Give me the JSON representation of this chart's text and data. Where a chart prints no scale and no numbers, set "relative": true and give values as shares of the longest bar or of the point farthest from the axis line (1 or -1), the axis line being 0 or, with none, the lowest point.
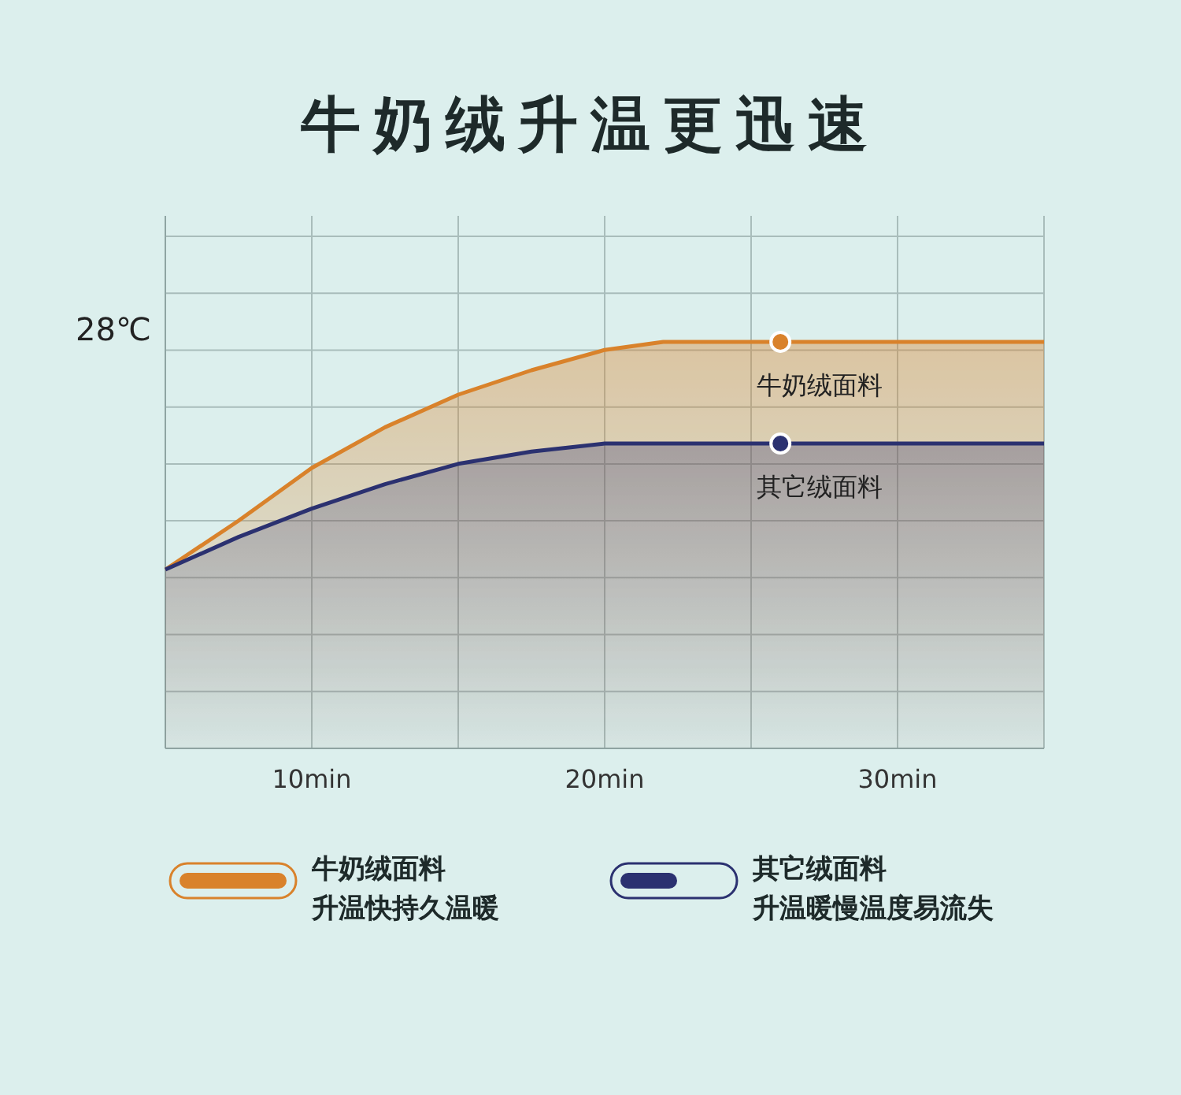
{
  "chart_data": {
    "type": "area",
    "title": "牛奶绒升温更迅速",
    "relative": true,
    "x": [
      5,
      7.5,
      10,
      12.5,
      15,
      17.5,
      20,
      22,
      26,
      30,
      35
    ],
    "series": [
      {
        "name": "牛奶绒面料",
        "color": "#d9822b",
        "values": [
          0.44,
          0.56,
          0.69,
          0.79,
          0.87,
          0.93,
          0.98,
          1,
          1,
          1,
          1
        ]
      },
      {
        "name": "其它绒面料",
        "color": "#2b3170",
        "values": [
          0.44,
          0.52,
          0.59,
          0.65,
          0.7,
          0.73,
          0.75,
          0.75,
          0.75,
          0.75,
          0.75
        ]
      }
    ],
    "xlim": [
      5,
      35
    ],
    "xticks": [
      {
        "value": 5,
        "label": null
      },
      {
        "value": 10,
        "label": "10min"
      },
      {
        "value": 15,
        "label": null
      },
      {
        "value": 20,
        "label": "20min"
      },
      {
        "value": 25,
        "label": null
      },
      {
        "value": 30,
        "label": "30min"
      },
      {
        "value": 35,
        "label": null
      }
    ],
    "grid": true,
    "legend": "bottom",
    "annotations": [
      "28℃",
      {
        "text": "牛奶绒面料",
        "x": 26,
        "y": 1
      },
      {
        "text": "其它绒面料",
        "x": 26,
        "y": 0.75
      },
      "升温快持久温暖",
      "升温暖慢温度易流失"
    ]
  }
}
